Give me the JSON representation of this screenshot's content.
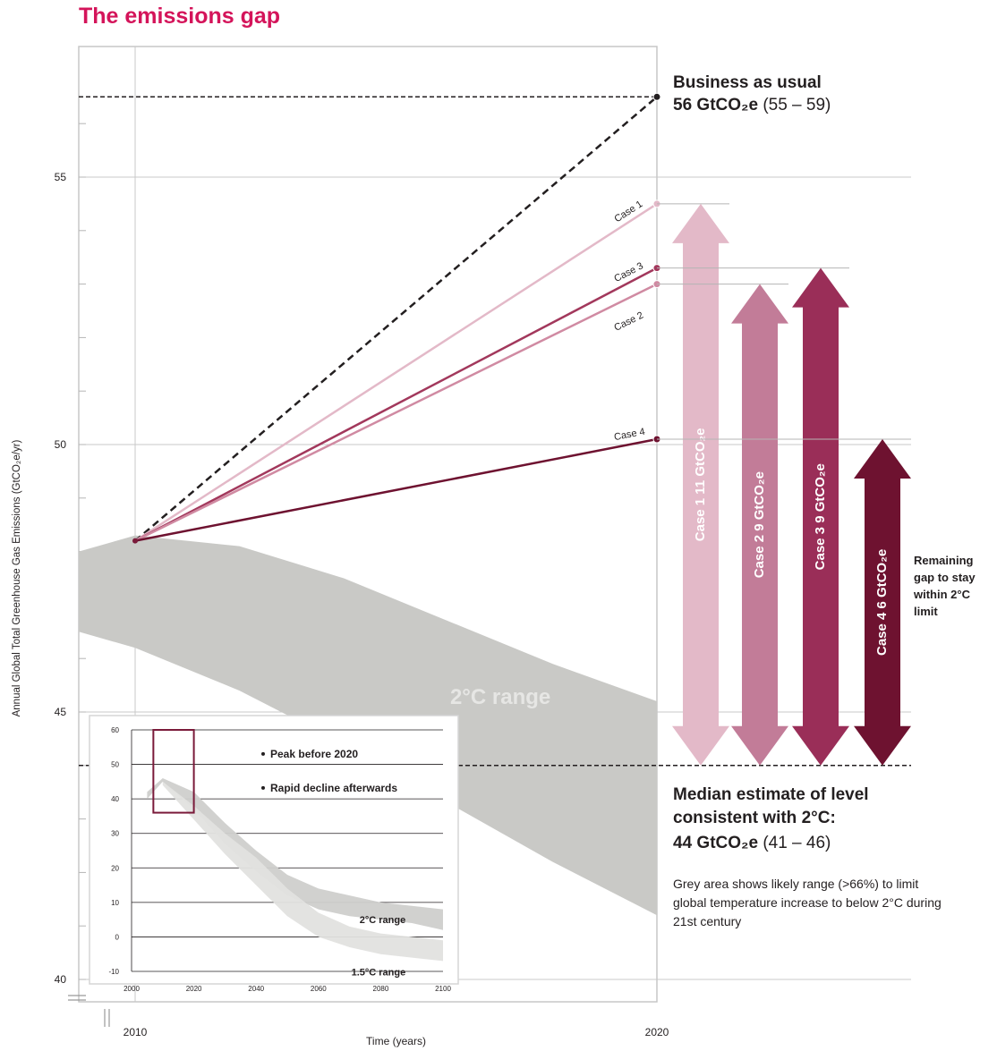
{
  "page_title": "The emissions gap",
  "annotations": {
    "bau_title": "Business as usual",
    "bau_value_bold": "56 GtCO₂e",
    "bau_value_range": "(55 – 59)",
    "median_line1": "Median estimate of level",
    "median_line2": "consistent with 2°C:",
    "median_value_bold": "44 GtCO₂e",
    "median_value_range": "(41 – 46)",
    "grey_note": "Grey area shows likely range (>66%) to limit global temperature increase to below 2°C during 21st century",
    "remaining_gap": "Remaining gap to stay within 2°C limit"
  },
  "chart_data": [
    {
      "type": "line",
      "ylabel": "Annual Global Total Greenhouse Gas Emissions (GtCO₂e/yr)",
      "xlabel": "Time (years)",
      "x_ticks": [
        "2010",
        "2020"
      ],
      "y_ticks": [
        40,
        45,
        50,
        55
      ],
      "ylim": [
        39.5,
        56.5
      ],
      "xlim": [
        2010,
        2020
      ],
      "range_label": "2°C range",
      "range_band": {
        "x": [
          2010,
          2012,
          2014,
          2016,
          2018,
          2020
        ],
        "upper": [
          48.3,
          48.1,
          47.5,
          46.7,
          45.9,
          45.2
        ],
        "lower": [
          46.2,
          45.4,
          44.4,
          43.3,
          42.2,
          41.2
        ]
      },
      "series": [
        {
          "name": "",
          "style": "dashed",
          "color": "#231f20",
          "x": [
            2010,
            2020
          ],
          "values": [
            48.2,
            56.5
          ]
        },
        {
          "name": "Case 1",
          "color": "#e3b9c8",
          "x": [
            2010,
            2020
          ],
          "values": [
            48.2,
            54.5
          ]
        },
        {
          "name": "Case 3",
          "color": "#a2385c",
          "x": [
            2010,
            2020
          ],
          "values": [
            48.2,
            53.3
          ]
        },
        {
          "name": "Case 2",
          "color": "#d08aa2",
          "x": [
            2010,
            2020
          ],
          "values": [
            48.2,
            53.0
          ]
        },
        {
          "name": "Case 4",
          "color": "#6e1230",
          "x": [
            2010,
            2020
          ],
          "values": [
            48.2,
            50.1
          ]
        }
      ],
      "reference_line": {
        "y": 44.0,
        "style": "dashed"
      },
      "gaps": [
        {
          "case": "Case 1",
          "label": "11 GtCO₂e",
          "from": 44.0,
          "to": 54.5,
          "color": "#e3b9c8"
        },
        {
          "case": "Case 2",
          "label": "9 GtCO₂e",
          "from": 44.0,
          "to": 53.0,
          "color": "#c27c98"
        },
        {
          "case": "Case 3",
          "label": "9 GtCO₂e",
          "from": 44.0,
          "to": 53.3,
          "color": "#9a2e58"
        },
        {
          "case": "Case 4",
          "label": "6 GtCO₂e",
          "from": 44.0,
          "to": 50.1,
          "color": "#6e1230"
        }
      ]
    },
    {
      "type": "area",
      "xlabel": "",
      "ylabel": "",
      "x_ticks": [
        2000,
        2020,
        2040,
        2060,
        2080,
        2100
      ],
      "y_ticks": [
        -10,
        0,
        10,
        20,
        30,
        40,
        50,
        60
      ],
      "xlim": [
        2000,
        2100
      ],
      "ylim": [
        -10,
        60
      ],
      "legend": [
        "Peak before 2020",
        "Rapid decline afterwards"
      ],
      "bands": [
        {
          "name": "2°C range",
          "x": [
            2005,
            2010,
            2020,
            2030,
            2040,
            2050,
            2060,
            2070,
            2080,
            2090,
            2100
          ],
          "upper": [
            42,
            46,
            42,
            33,
            25,
            18,
            14,
            12,
            10,
            9,
            8
          ],
          "lower": [
            40,
            45,
            37,
            27,
            19,
            12,
            8,
            6,
            5,
            4,
            2
          ]
        },
        {
          "name": "1.5°C range",
          "x": [
            2010,
            2020,
            2030,
            2040,
            2050,
            2060,
            2070,
            2080,
            2090,
            2100
          ],
          "upper": [
            45,
            38,
            30,
            23,
            14,
            7,
            3,
            1,
            0,
            -1
          ],
          "lower": [
            44,
            34,
            24,
            15,
            6,
            0,
            -3,
            -5,
            -6,
            -7
          ]
        }
      ]
    }
  ]
}
